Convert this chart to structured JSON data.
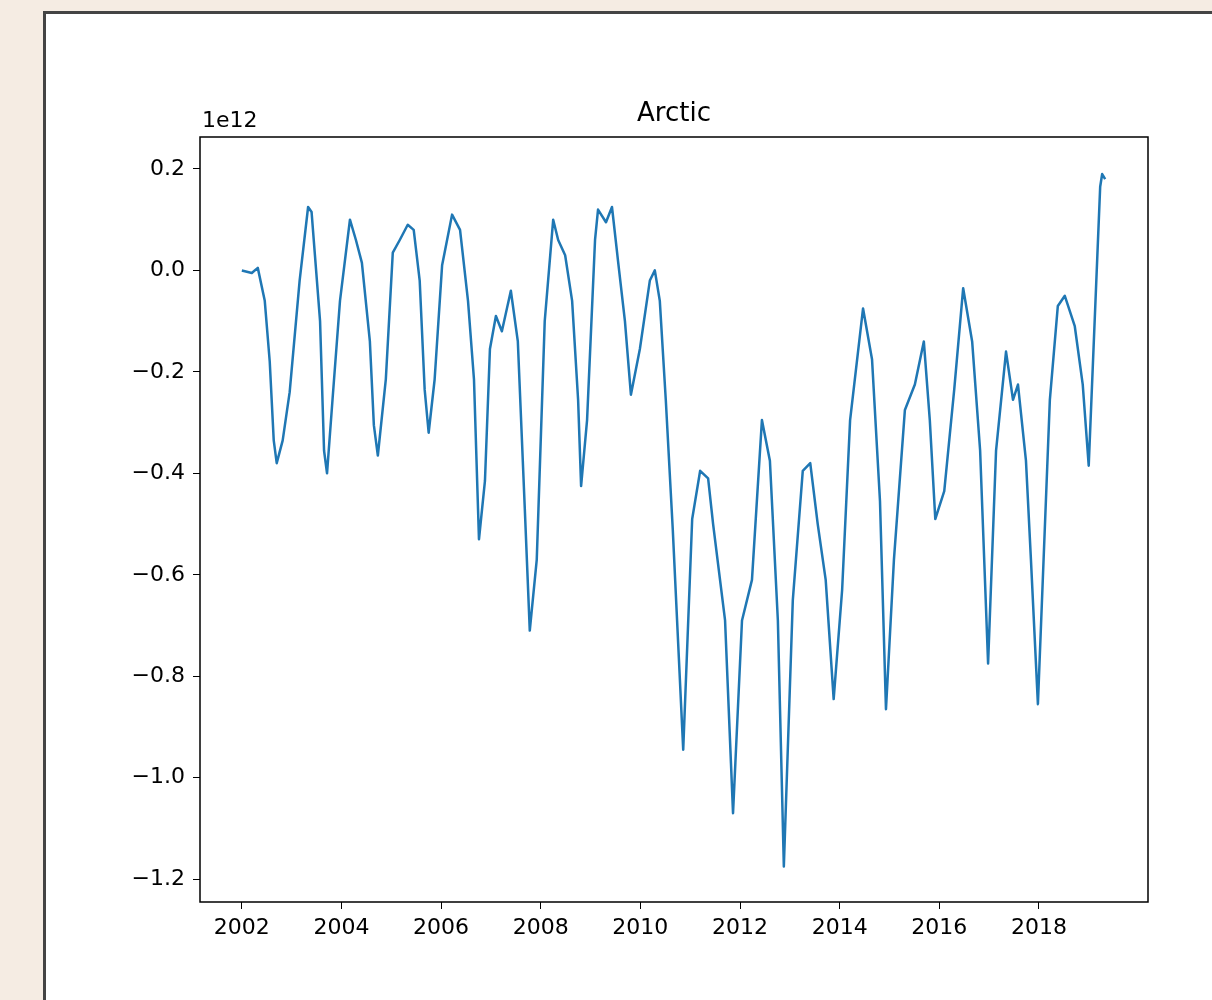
{
  "chart_data": {
    "type": "line",
    "title": "Arctic",
    "annotations": [
      "1e12"
    ],
    "grid": false,
    "legend": false,
    "marker": "none",
    "line_style": "solid",
    "xlim": [
      2001.16,
      2020.19
    ],
    "ylim": [
      -1.245,
      0.263
    ],
    "xticks": [
      2002,
      2004,
      2006,
      2008,
      2010,
      2012,
      2014,
      2016,
      2018
    ],
    "yticks": [
      {
        "value": 0.2,
        "label": "0.2"
      },
      {
        "value": 0,
        "label": "0.0"
      },
      {
        "value": -0.2,
        "label": "−0.2"
      },
      {
        "value": -0.4,
        "label": "−0.4"
      },
      {
        "value": -0.6,
        "label": "−0.6"
      },
      {
        "value": -0.8,
        "label": "−0.8"
      },
      {
        "value": -1.0,
        "label": "−1.0"
      },
      {
        "value": -1.2,
        "label": "−1.2"
      }
    ],
    "x": [
      2002.0,
      2002.2,
      2002.32,
      2002.46,
      2002.56,
      2002.64,
      2002.7,
      2002.82,
      2002.96,
      2003.16,
      2003.33,
      2003.4,
      2003.57,
      2003.65,
      2003.71,
      2003.82,
      2003.97,
      2004.17,
      2004.29,
      2004.41,
      2004.57,
      2004.65,
      2004.73,
      2004.89,
      2005.03,
      2005.17,
      2005.33,
      2005.45,
      2005.57,
      2005.67,
      2005.75,
      2005.87,
      2006.02,
      2006.22,
      2006.38,
      2006.54,
      2006.66,
      2006.76,
      2006.88,
      2006.98,
      2007.1,
      2007.22,
      2007.4,
      2007.54,
      2007.68,
      2007.78,
      2007.92,
      2008.08,
      2008.25,
      2008.35,
      2008.49,
      2008.63,
      2008.75,
      2008.81,
      2008.93,
      2009.09,
      2009.15,
      2009.31,
      2009.43,
      2009.55,
      2009.69,
      2009.81,
      2009.99,
      2010.19,
      2010.29,
      2010.39,
      2010.51,
      2010.65,
      2010.86,
      2011.04,
      2011.2,
      2011.36,
      2011.46,
      2011.7,
      2011.86,
      2012.04,
      2012.24,
      2012.44,
      2012.6,
      2012.76,
      2012.88,
      2013.06,
      2013.26,
      2013.41,
      2013.56,
      2013.72,
      2013.88,
      2014.05,
      2014.21,
      2014.47,
      2014.65,
      2014.81,
      2014.93,
      2015.09,
      2015.31,
      2015.51,
      2015.69,
      2015.81,
      2015.92,
      2016.1,
      2016.3,
      2016.48,
      2016.66,
      2016.82,
      2016.98,
      2017.14,
      2017.34,
      2017.48,
      2017.58,
      2017.74,
      2017.84,
      2017.98,
      2018.22,
      2018.38,
      2018.52,
      2018.72,
      2018.88,
      2019.0,
      2019.23,
      2019.27,
      2019.33
    ],
    "series": [
      {
        "color": "#1f77b4",
        "values": [
          0.0,
          -0.005,
          0.005,
          -0.06,
          -0.18,
          -0.335,
          -0.38,
          -0.335,
          -0.24,
          -0.02,
          0.125,
          0.115,
          -0.1,
          -0.355,
          -0.4,
          -0.255,
          -0.06,
          0.1,
          0.06,
          0.015,
          -0.14,
          -0.305,
          -0.365,
          -0.215,
          0.035,
          0.06,
          0.09,
          0.08,
          -0.02,
          -0.235,
          -0.32,
          -0.215,
          0.01,
          0.11,
          0.08,
          -0.06,
          -0.215,
          -0.53,
          -0.415,
          -0.155,
          -0.09,
          -0.12,
          -0.04,
          -0.14,
          -0.47,
          -0.71,
          -0.57,
          -0.1,
          0.1,
          0.06,
          0.03,
          -0.06,
          -0.255,
          -0.425,
          -0.295,
          0.06,
          0.12,
          0.095,
          0.125,
          0.02,
          -0.1,
          -0.245,
          -0.155,
          -0.02,
          0.0,
          -0.06,
          -0.255,
          -0.51,
          -0.945,
          -0.49,
          -0.395,
          -0.41,
          -0.5,
          -0.69,
          -1.07,
          -0.69,
          -0.61,
          -0.295,
          -0.375,
          -0.69,
          -1.175,
          -0.65,
          -0.395,
          -0.38,
          -0.5,
          -0.61,
          -0.845,
          -0.63,
          -0.295,
          -0.075,
          -0.175,
          -0.455,
          -0.865,
          -0.57,
          -0.275,
          -0.225,
          -0.14,
          -0.295,
          -0.49,
          -0.435,
          -0.235,
          -0.035,
          -0.14,
          -0.355,
          -0.775,
          -0.355,
          -0.16,
          -0.255,
          -0.225,
          -0.375,
          -0.57,
          -0.855,
          -0.255,
          -0.07,
          -0.05,
          -0.11,
          -0.225,
          -0.385,
          0.165,
          0.19,
          0.18
        ]
      }
    ]
  }
}
